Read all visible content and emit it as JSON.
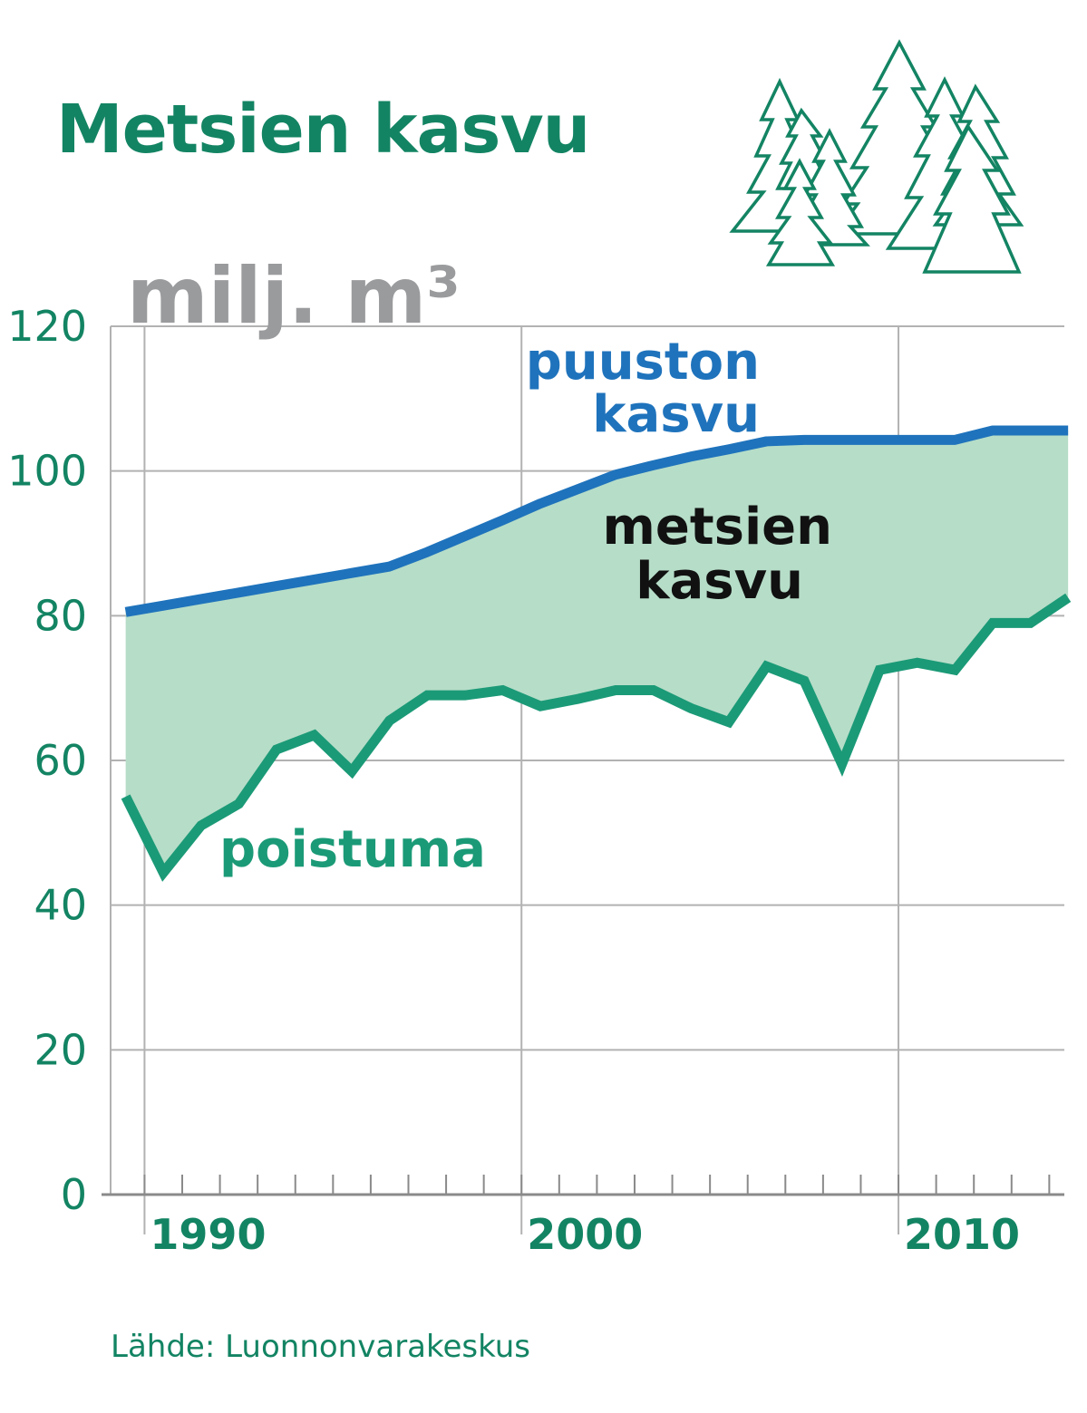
{
  "title": "Metsien kasvu",
  "source": "Lähde: Luonnonvarakeskus",
  "colors": {
    "title": "#138463",
    "growth_line": "#1f73bc",
    "removal_line": "#1b9a77",
    "area_fill": "#b6ddc8",
    "grid": "#b2b2b2",
    "unit": "#9a9b9d",
    "area_label": "#111111"
  },
  "icons": [
    "spruce-forest-icon"
  ],
  "chart_data": {
    "type": "area",
    "unit_label": "milj. m³",
    "ylim": [
      0,
      120
    ],
    "xlim": [
      1988.6,
      2013.9
    ],
    "y_ticks": [
      "0",
      "20",
      "40",
      "60",
      "80",
      "100",
      "120"
    ],
    "x_tick_labels": [
      "1990",
      "2000",
      "2010"
    ],
    "grid": true,
    "series": [
      {
        "name": "puuston kasvu",
        "x": [
          1989,
          1990,
          1991,
          1992,
          1993,
          1994,
          1995,
          1996,
          1997,
          1998,
          1999,
          2000,
          2001,
          2002,
          2003,
          2004,
          2005,
          2006,
          2007,
          2008,
          2009,
          2010,
          2011,
          2012,
          2013,
          2014
        ],
        "values": [
          80.5,
          81.4,
          82.3,
          83.2,
          84.1,
          85.0,
          85.9,
          86.8,
          88.8,
          91.0,
          93.2,
          95.5,
          97.5,
          99.5,
          100.8,
          102.0,
          103.0,
          104.1,
          104.3,
          104.3,
          104.3,
          104.3,
          104.3,
          105.6,
          105.6,
          105.6
        ]
      },
      {
        "name": "poistuma",
        "x": [
          1989,
          1990,
          1991,
          1992,
          1993,
          1994,
          1995,
          1996,
          1997,
          1998,
          1999,
          2000,
          2001,
          2002,
          2003,
          2004,
          2005,
          2006,
          2007,
          2008,
          2009,
          2010,
          2011,
          2012,
          2013,
          2014
        ],
        "values": [
          55.0,
          44.5,
          51.0,
          54.0,
          61.5,
          63.5,
          58.5,
          65.5,
          69.0,
          69.0,
          69.7,
          67.5,
          68.5,
          69.7,
          69.7,
          67.2,
          65.3,
          73.0,
          71.0,
          59.5,
          72.5,
          73.5,
          72.5,
          79.0,
          79.0,
          82.5
        ]
      }
    ],
    "annotations": {
      "growth_label": [
        "puuston",
        "kasvu"
      ],
      "area_label": [
        "metsien",
        "kasvu"
      ],
      "removal_label": "poistuma"
    }
  }
}
